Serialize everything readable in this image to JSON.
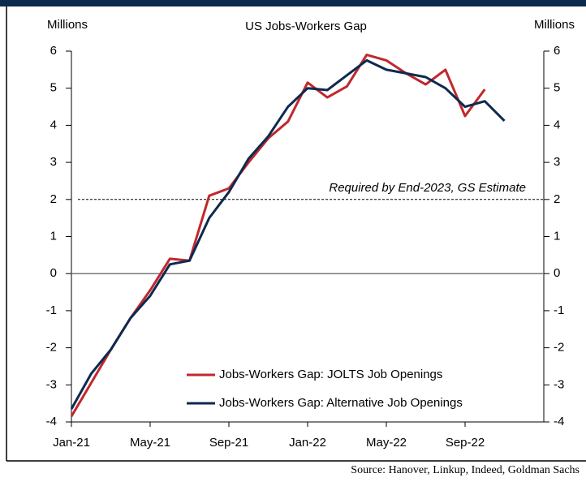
{
  "chart_data": {
    "type": "line",
    "title": "US Jobs-Workers Gap",
    "y_label": "Millions",
    "y2_label": "Millions",
    "categories": [
      "Jan-21",
      null,
      null,
      null,
      "May-21",
      null,
      null,
      null,
      "Sep-21",
      null,
      null,
      null,
      "Jan-22",
      null,
      null,
      null,
      "May-22",
      null,
      null,
      null,
      "Sep-22",
      null,
      null
    ],
    "series": [
      {
        "name": "Jobs-Workers Gap: JOLTS Job Openings",
        "color": "#c0282d",
        "values": [
          -3.85,
          -2.95,
          -2.05,
          -1.2,
          -0.45,
          0.4,
          0.35,
          2.1,
          2.3,
          3.0,
          3.65,
          4.1,
          5.15,
          4.75,
          5.05,
          5.9,
          5.75,
          5.4,
          5.1,
          5.5,
          4.25,
          4.97,
          null
        ]
      },
      {
        "name": "Jobs-Workers Gap: Alternative Job Openings",
        "color": "#0d2a4f",
        "values": [
          -3.65,
          -2.7,
          -2.05,
          -1.2,
          -0.6,
          0.25,
          0.35,
          1.5,
          2.2,
          3.1,
          3.7,
          4.5,
          5.0,
          4.95,
          5.35,
          5.75,
          5.5,
          5.4,
          5.3,
          5.0,
          4.5,
          4.65,
          4.12
        ]
      }
    ],
    "ylim": [
      -4,
      6
    ],
    "yticks": [
      -4,
      -3,
      -2,
      -1,
      0,
      1,
      2,
      3,
      4,
      5,
      6
    ],
    "y2lim": [
      -4,
      6
    ],
    "y2ticks": [
      -4,
      -3,
      -2,
      -1,
      0,
      1,
      2,
      3,
      4,
      5,
      6
    ],
    "reference_line": {
      "value": 2,
      "label": "Required by End-2023, GS Estimate"
    },
    "legend": "lower right",
    "source": "Source: Hanover, Linkup, Indeed, Goldman Sachs"
  }
}
